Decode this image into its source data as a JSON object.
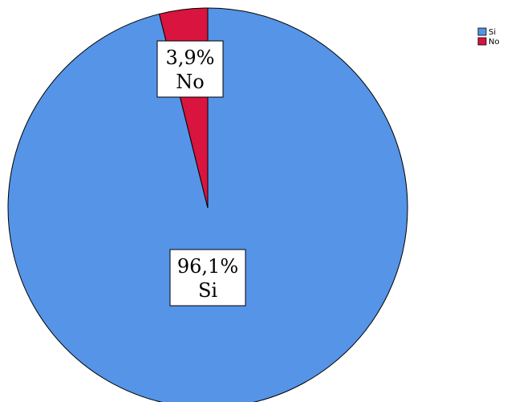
{
  "chart_data": {
    "type": "pie",
    "slices": [
      {
        "name": "Si",
        "value": 96.1,
        "label": "96,1%",
        "color": "#5594e6"
      },
      {
        "name": "No",
        "value": 3.9,
        "label": "3,9%",
        "color": "#d8143f"
      }
    ],
    "legend": {
      "placement": "top-right",
      "entries": [
        "Si",
        "No"
      ]
    },
    "start_angle_deg": 0,
    "direction": "clockwise"
  }
}
